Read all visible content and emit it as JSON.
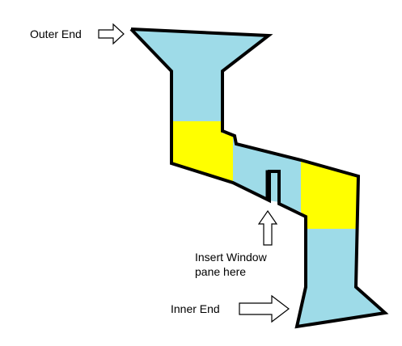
{
  "labels": {
    "outer_end": "Outer End",
    "insert_window_line1": "Insert Window",
    "insert_window_line2": "pane here",
    "inner_end": "Inner End"
  },
  "colors": {
    "blue_fill": "#9edbe8",
    "yellow_fill": "#ffff00",
    "outline": "#000000",
    "background": "#ffffff"
  }
}
